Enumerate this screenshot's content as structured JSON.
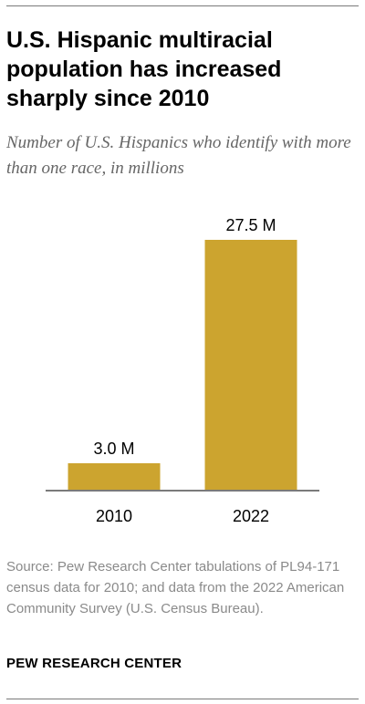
{
  "title": "U.S. Hispanic multiracial population has increased sharply since 2010",
  "subtitle": "Number of U.S. Hispanics who identify with more than one race, in millions",
  "source": "Source: Pew Research Center tabulations of PL94-171 census data for 2010; and data from the 2022 American Community Survey (U.S. Census Bureau).",
  "brand": "PEW RESEARCH CENTER",
  "colors": {
    "bar": "#CCA42F",
    "axis": "#7a7a7a",
    "text": "#000000"
  },
  "chart_data": {
    "type": "bar",
    "categories": [
      "2010",
      "2022"
    ],
    "values": [
      3.0,
      27.5
    ],
    "data_labels": [
      "3.0 M",
      "27.5 M"
    ],
    "title": "U.S. Hispanic multiracial population has increased sharply since 2010",
    "subtitle": "Number of U.S. Hispanics who identify with more than one race, in millions",
    "ylim": [
      0,
      27.5
    ],
    "grid": false,
    "legend": "none"
  }
}
